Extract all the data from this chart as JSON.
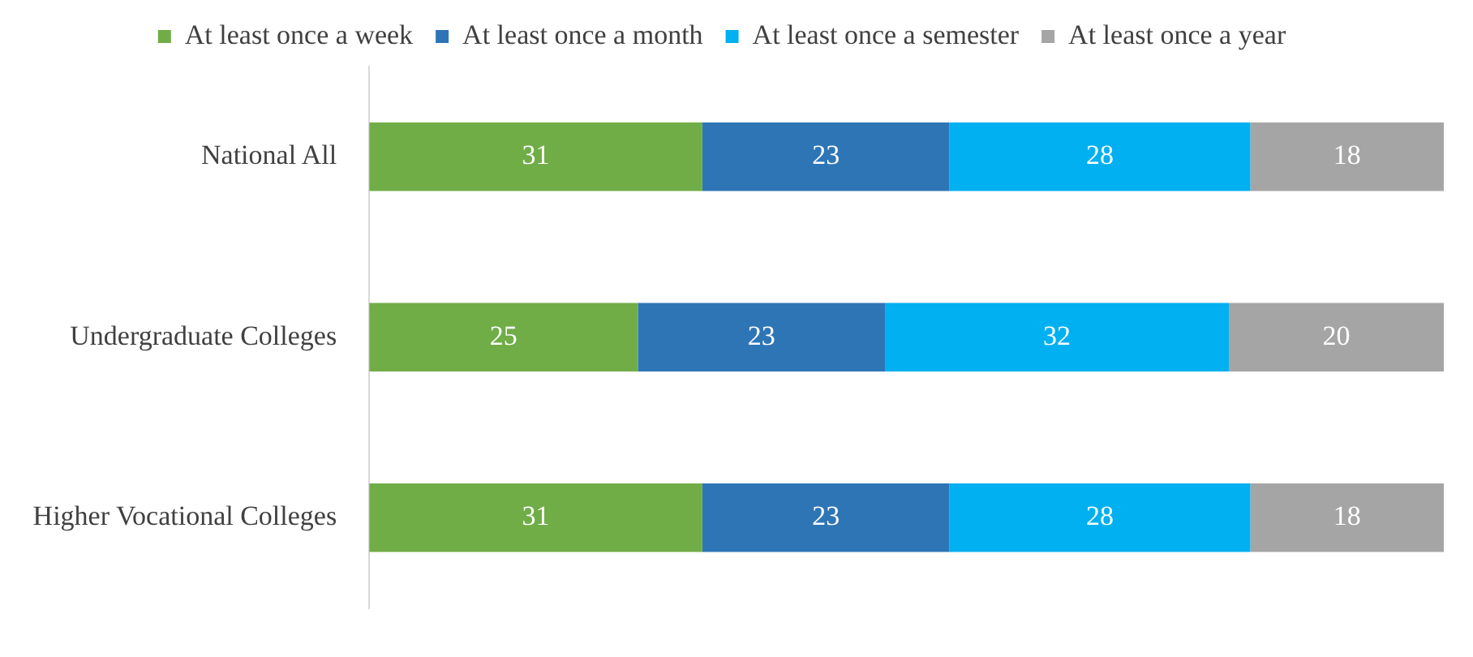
{
  "chart_data": {
    "type": "bar",
    "orientation": "horizontal",
    "stacked": true,
    "categories": [
      "National All",
      "Undergraduate Colleges",
      "Higher Vocational Colleges"
    ],
    "series": [
      {
        "name": "At least once a week",
        "color": "#70ad47",
        "values": [
          31,
          25,
          31
        ]
      },
      {
        "name": "At least once a month",
        "color": "#2e75b6",
        "values": [
          23,
          23,
          23
        ]
      },
      {
        "name": "At least once a semester",
        "color": "#00b0f0",
        "values": [
          28,
          32,
          28
        ]
      },
      {
        "name": "At least once a year",
        "color": "#a5a5a5",
        "values": [
          18,
          20,
          18
        ]
      }
    ],
    "data_labels": true,
    "legend": "top",
    "grid": false,
    "tick_labels": "y"
  }
}
